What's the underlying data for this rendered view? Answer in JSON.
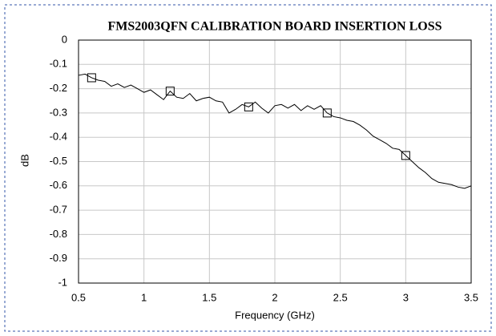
{
  "chart_data": {
    "type": "line",
    "title": "FMS2003QFN CALIBRATION BOARD INSERTION LOSS",
    "x_label": "Frequency (GHz)",
    "y_label": "dB",
    "x": [
      0.5,
      0.55,
      0.6,
      0.65,
      0.7,
      0.75,
      0.8,
      0.85,
      0.9,
      0.95,
      1.0,
      1.05,
      1.1,
      1.15,
      1.2,
      1.25,
      1.3,
      1.35,
      1.4,
      1.45,
      1.5,
      1.55,
      1.6,
      1.65,
      1.7,
      1.75,
      1.8,
      1.85,
      1.9,
      1.95,
      2.0,
      2.05,
      2.1,
      2.15,
      2.2,
      2.25,
      2.3,
      2.35,
      2.4,
      2.45,
      2.5,
      2.55,
      2.6,
      2.65,
      2.7,
      2.75,
      2.8,
      2.85,
      2.9,
      2.95,
      3.0,
      3.05,
      3.1,
      3.15,
      3.2,
      3.25,
      3.3,
      3.35,
      3.4,
      3.45,
      3.5
    ],
    "series": [
      {
        "color": "#000000",
        "values": [
          -0.145,
          -0.14,
          -0.155,
          -0.165,
          -0.17,
          -0.19,
          -0.18,
          -0.195,
          -0.185,
          -0.2,
          -0.215,
          -0.205,
          -0.225,
          -0.245,
          -0.21,
          -0.235,
          -0.24,
          -0.22,
          -0.25,
          -0.24,
          -0.235,
          -0.25,
          -0.255,
          -0.3,
          -0.285,
          -0.265,
          -0.275,
          -0.255,
          -0.28,
          -0.3,
          -0.27,
          -0.265,
          -0.28,
          -0.265,
          -0.29,
          -0.27,
          -0.285,
          -0.27,
          -0.3,
          -0.315,
          -0.32,
          -0.33,
          -0.335,
          -0.35,
          -0.37,
          -0.395,
          -0.41,
          -0.425,
          -0.445,
          -0.45,
          -0.475,
          -0.5,
          -0.525,
          -0.545,
          -0.57,
          -0.585,
          -0.59,
          -0.595,
          -0.605,
          -0.61,
          -0.6
        ]
      }
    ],
    "markers": {
      "shape": "square",
      "color": "#000000",
      "x": [
        0.6,
        1.2,
        1.8,
        2.4,
        3.0
      ],
      "values": [
        -0.155,
        -0.21,
        -0.275,
        -0.3,
        -0.475
      ]
    },
    "xlim": [
      0.5,
      3.5
    ],
    "xticks": [
      0.5,
      1,
      1.5,
      2,
      2.5,
      3,
      3.5
    ],
    "ylim": [
      -1,
      0
    ],
    "yticks": [
      0,
      -0.1,
      -0.2,
      -0.3,
      -0.4,
      -0.5,
      -0.6,
      -0.7,
      -0.8,
      -0.9,
      -1
    ],
    "grid": true
  }
}
